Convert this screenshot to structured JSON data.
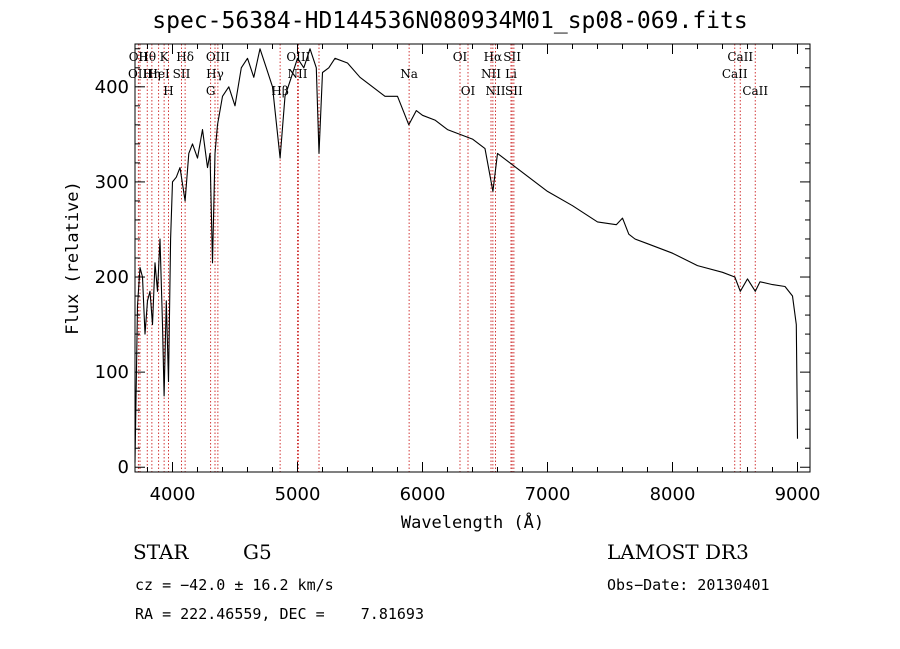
{
  "chart_data": {
    "type": "line",
    "title": "spec-56384-HD144536N080934M01_sp08-069.fits",
    "xlabel": "Wavelength (Å)",
    "ylabel": "Flux (relative)",
    "xlim": [
      3700,
      9100
    ],
    "ylim": [
      -5,
      445
    ],
    "xticks": [
      4000,
      5000,
      6000,
      7000,
      8000,
      9000
    ],
    "yticks": [
      0,
      100,
      200,
      300,
      400
    ],
    "series": [
      {
        "name": "spectrum",
        "x": [
          3700,
          3720,
          3740,
          3760,
          3780,
          3800,
          3820,
          3840,
          3860,
          3880,
          3900,
          3920,
          3933,
          3950,
          3968,
          3985,
          4000,
          4030,
          4060,
          4101,
          4130,
          4160,
          4200,
          4240,
          4280,
          4300,
          4320,
          4340,
          4360,
          4400,
          4450,
          4500,
          4550,
          4600,
          4650,
          4700,
          4750,
          4800,
          4861,
          4900,
          4950,
          5000,
          5050,
          5100,
          5150,
          5172,
          5200,
          5250,
          5300,
          5400,
          5500,
          5600,
          5700,
          5800,
          5890,
          5950,
          6000,
          6100,
          6200,
          6300,
          6400,
          6500,
          6563,
          6600,
          6700,
          6800,
          6900,
          7000,
          7200,
          7400,
          7550,
          7600,
          7650,
          7700,
          7800,
          8000,
          8200,
          8400,
          8498,
          8542,
          8600,
          8662,
          8700,
          8800,
          8900,
          8960,
          8990,
          9000
        ],
        "y": [
          5,
          170,
          210,
          200,
          140,
          175,
          185,
          150,
          215,
          185,
          240,
          150,
          75,
          175,
          90,
          240,
          300,
          305,
          315,
          280,
          330,
          340,
          325,
          355,
          315,
          330,
          215,
          330,
          360,
          390,
          400,
          380,
          420,
          430,
          410,
          440,
          420,
          400,
          325,
          390,
          410,
          430,
          420,
          440,
          420,
          330,
          415,
          420,
          430,
          425,
          410,
          400,
          390,
          390,
          360,
          375,
          370,
          365,
          355,
          350,
          345,
          335,
          290,
          330,
          320,
          310,
          300,
          290,
          275,
          258,
          255,
          262,
          245,
          240,
          235,
          225,
          212,
          205,
          200,
          185,
          198,
          185,
          195,
          192,
          190,
          180,
          150,
          30
        ]
      }
    ],
    "line_markers": [
      {
        "label": "Hθ",
        "wavelength": 3798
      },
      {
        "label": "OII",
        "wavelength": 3727
      },
      {
        "label": "OIII",
        "wavelength": 3740
      },
      {
        "label": "HeI",
        "wavelength": 3889
      },
      {
        "label": "Hη",
        "wavelength": 3835
      },
      {
        "label": "K",
        "wavelength": 3933
      },
      {
        "label": "SII",
        "wavelength": 4072
      },
      {
        "label": "H",
        "wavelength": 3968
      },
      {
        "label": "Hδ",
        "wavelength": 4101
      },
      {
        "label": "OIII",
        "wavelength": 4363
      },
      {
        "label": "Hγ",
        "wavelength": 4340
      },
      {
        "label": "G",
        "wavelength": 4305
      },
      {
        "label": "OIII",
        "wavelength": 5007
      },
      {
        "label": "NII",
        "wavelength": 5000
      },
      {
        "label": "Hβ",
        "wavelength": 4861
      },
      {
        "label": "Na",
        "wavelength": 5893
      },
      {
        "label": "OI",
        "wavelength": 6300
      },
      {
        "label": "OI",
        "wavelength": 6364
      },
      {
        "label": "Hα",
        "wavelength": 6563
      },
      {
        "label": "NII",
        "wavelength": 6548
      },
      {
        "label": "NII",
        "wavelength": 6584
      },
      {
        "label": "SII",
        "wavelength": 6717
      },
      {
        "label": "Li",
        "wavelength": 6708
      },
      {
        "label": "SII",
        "wavelength": 6731
      },
      {
        "label": "CaII",
        "wavelength": 8542
      },
      {
        "label": "CaII",
        "wavelength": 8498
      },
      {
        "label": "CaII",
        "wavelength": 8662
      }
    ],
    "dotted_lines_only": [
      5172
    ],
    "label_rows": [
      0,
      0,
      1,
      1,
      1,
      0,
      1,
      2,
      0,
      0,
      1,
      2,
      0,
      1,
      2,
      1,
      0,
      2,
      0,
      1,
      2,
      0,
      1,
      2,
      0,
      1,
      2
    ]
  },
  "colors": {
    "marker_line": "#cc2222",
    "spectrum": "#000000"
  },
  "info": {
    "object_type": "STAR",
    "object_class": "G5",
    "survey": "LAMOST DR3",
    "cz": "cz = −42.0 ± 16.2 km/s",
    "obs_date": "Obs−Date: 20130401",
    "radec": "RA = 222.46559, DEC =    7.81693"
  }
}
